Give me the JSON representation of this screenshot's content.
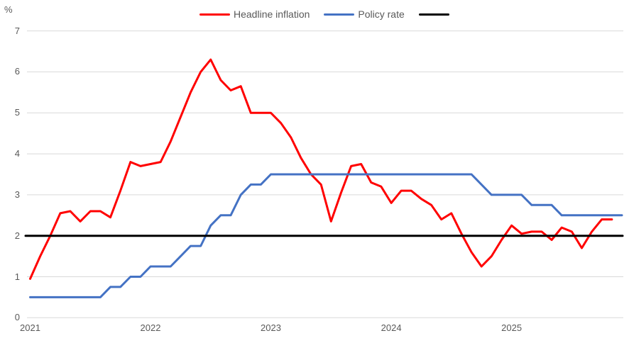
{
  "chart": {
    "percent_label": "%",
    "y_axis": {
      "ticks": [
        "7",
        "6",
        "5",
        "4",
        "3",
        "2",
        "1",
        "0"
      ],
      "values": [
        7,
        6,
        5,
        4,
        3,
        2,
        1,
        0
      ]
    },
    "x_axis": {
      "ticks": [
        "2021",
        "2022",
        "2023",
        "2024",
        "2025"
      ],
      "month_indices": [
        0,
        12,
        24,
        36,
        48
      ]
    },
    "legend": [
      {
        "label": "Headline inflation",
        "color": "#ff0000"
      },
      {
        "label": "Policy rate",
        "color": "#4472c4"
      },
      {
        "label": "",
        "color": "#000000"
      }
    ],
    "colors": {
      "gridline": "#d9d9d9",
      "axis_text": "#595959"
    }
  },
  "chart_data": {
    "type": "line",
    "title": "",
    "ylabel": "%",
    "xlabel": "",
    "ylim": [
      0,
      7
    ],
    "grid": "horizontal",
    "legend_position": "top-center",
    "x_unit": "month",
    "x_start": "2021-01",
    "x_tick_years": [
      "2021",
      "2022",
      "2023",
      "2024",
      "2025"
    ],
    "series": [
      {
        "name": "Headline inflation",
        "color": "#ff0000",
        "start": "2021-01",
        "end": "2025-11",
        "values": [
          0.95,
          1.5,
          2.0,
          2.55,
          2.6,
          2.35,
          2.6,
          2.6,
          2.45,
          3.1,
          3.8,
          3.7,
          3.75,
          3.8,
          4.3,
          4.9,
          5.5,
          6.0,
          6.3,
          5.8,
          5.55,
          5.65,
          5.0,
          5.0,
          5.0,
          4.75,
          4.4,
          3.9,
          3.5,
          3.25,
          2.35,
          3.05,
          3.7,
          3.75,
          3.3,
          3.2,
          2.8,
          3.1,
          3.1,
          2.9,
          2.75,
          2.4,
          2.55,
          2.05,
          1.6,
          1.25,
          1.5,
          1.9,
          2.25,
          2.05,
          2.1,
          2.1,
          1.9,
          2.2,
          2.1,
          1.7,
          2.1,
          2.4,
          2.4
        ]
      },
      {
        "name": "Policy rate",
        "color": "#4472c4",
        "start": "2021-01",
        "end": "2025-12",
        "values": [
          0.5,
          0.5,
          0.5,
          0.5,
          0.5,
          0.5,
          0.5,
          0.5,
          0.75,
          0.75,
          1.0,
          1.0,
          1.25,
          1.25,
          1.25,
          1.5,
          1.75,
          1.75,
          2.25,
          2.5,
          2.5,
          3.0,
          3.25,
          3.25,
          3.5,
          3.5,
          3.5,
          3.5,
          3.5,
          3.5,
          3.5,
          3.5,
          3.5,
          3.5,
          3.5,
          3.5,
          3.5,
          3.5,
          3.5,
          3.5,
          3.5,
          3.5,
          3.5,
          3.5,
          3.5,
          3.25,
          3.0,
          3.0,
          3.0,
          3.0,
          2.75,
          2.75,
          2.75,
          2.5,
          2.5,
          2.5,
          2.5,
          2.5,
          2.5,
          2.5
        ]
      },
      {
        "name": "",
        "color": "#000000",
        "type": "hline",
        "value": 2
      }
    ]
  }
}
